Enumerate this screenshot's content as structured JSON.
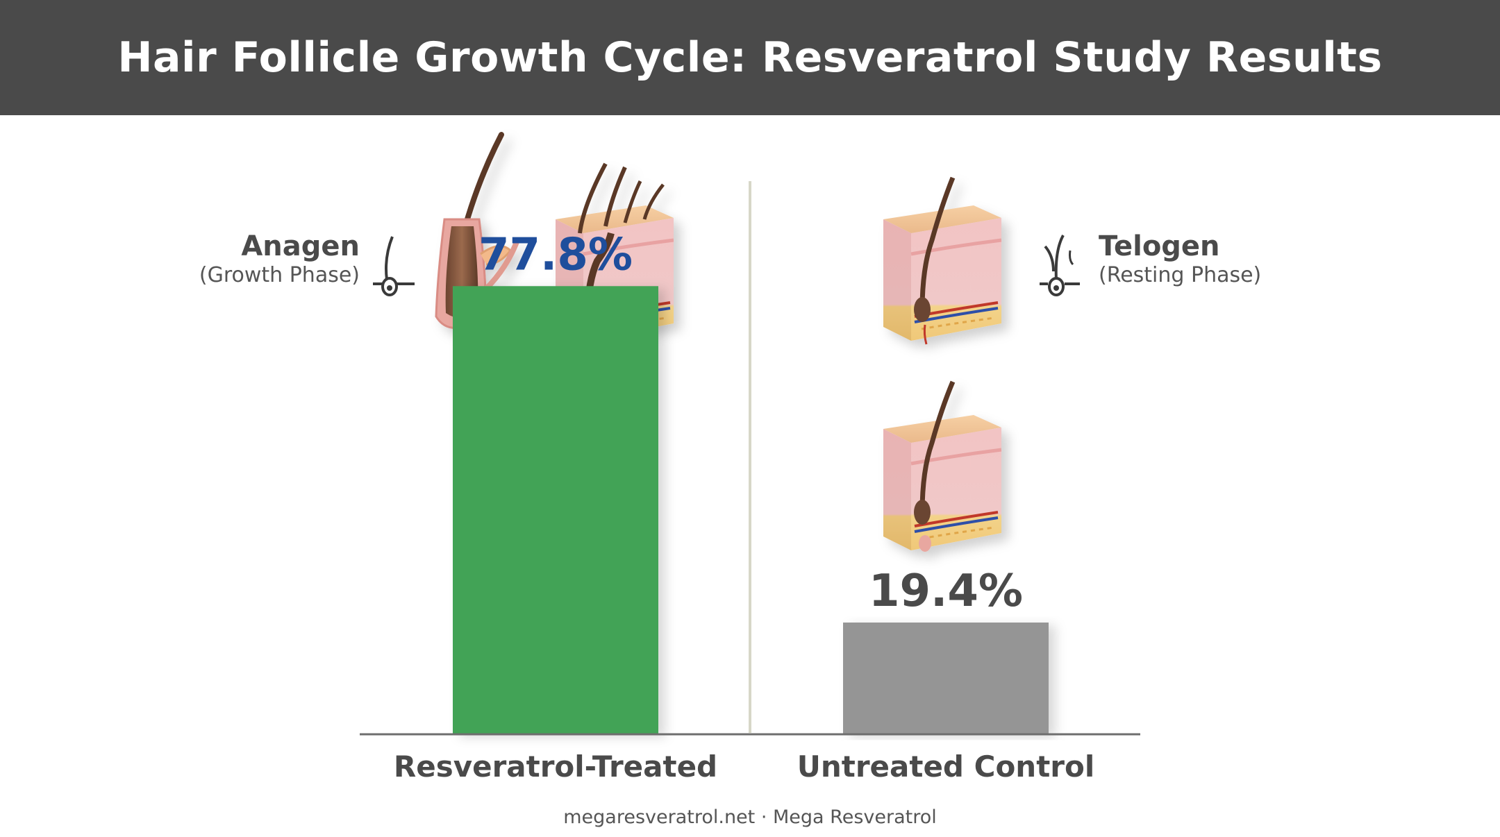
{
  "header": {
    "title": "Hair Follicle Growth Cycle: Resveratrol Study Results"
  },
  "colors": {
    "treated": "#43a356",
    "control": "#959595",
    "treated_label": "#1f4e9c",
    "control_label": "#4a4a4a"
  },
  "phases": {
    "anagen": {
      "title": "Anagen",
      "subtitle": "(Growth Phase)",
      "icon": "hair-follicle-growth-icon"
    },
    "telogen": {
      "title": "Telogen",
      "subtitle": "(Resting Phase)",
      "icon": "hair-follicle-resting-icon"
    }
  },
  "chart_data": {
    "type": "bar",
    "categories": [
      "Resveratrol-Treated",
      "Untreated Control"
    ],
    "values": [
      77.8,
      19.4
    ],
    "value_labels": [
      "77.8%",
      "19.4%"
    ],
    "ylim": [
      0,
      100
    ],
    "grid": false,
    "title": "",
    "xlabel": "",
    "ylabel": ""
  },
  "footer": {
    "text": "megaresveratrol.net · Mega Resveratrol"
  }
}
